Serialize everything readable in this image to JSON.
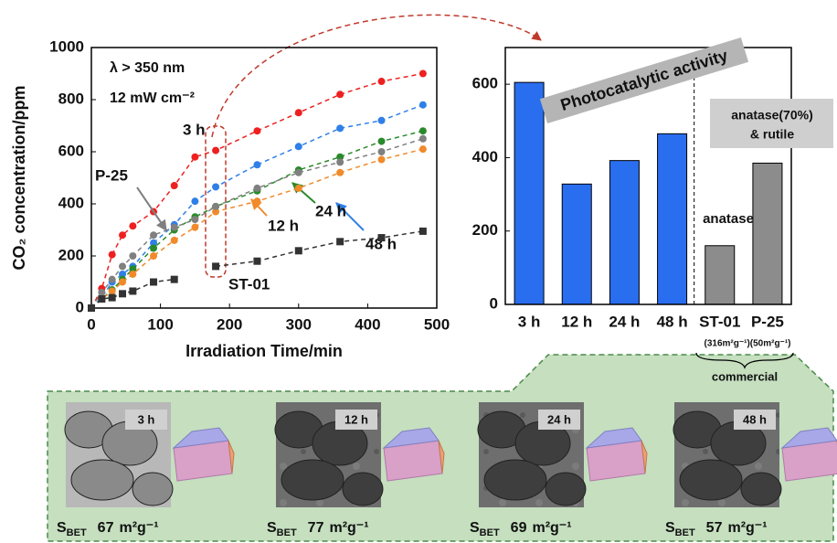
{
  "chart_data": [
    {
      "type": "line",
      "xlabel": "Irradiation Time/min",
      "ylabel": "CO₂ concentration/ppm",
      "annotations": [
        "λ > 350 nm",
        "12 mW cm⁻²"
      ],
      "x": [
        0,
        15,
        30,
        45,
        60,
        90,
        120,
        150,
        180,
        240,
        300,
        360,
        420,
        480
      ],
      "xlim": [
        0,
        500
      ],
      "xticks": [
        0,
        100,
        200,
        300,
        400,
        500
      ],
      "ylim": [
        0,
        1000
      ],
      "yticks": [
        0,
        200,
        400,
        600,
        800,
        1000
      ],
      "series": [
        {
          "name": "3 h",
          "color": "#ee2020",
          "marker": "circle",
          "values": [
            0,
            75,
            205,
            280,
            315,
            370,
            470,
            580,
            605,
            680,
            750,
            820,
            870,
            900
          ]
        },
        {
          "name": "48 h",
          "color": "#2f7fe8",
          "marker": "circle",
          "values": [
            0,
            40,
            100,
            130,
            160,
            250,
            320,
            410,
            465,
            550,
            620,
            690,
            720,
            780
          ]
        },
        {
          "name": "24 h",
          "color": "#2a8a2a",
          "marker": "circle",
          "values": [
            0,
            35,
            70,
            110,
            150,
            230,
            300,
            350,
            390,
            450,
            530,
            580,
            640,
            680
          ]
        },
        {
          "name": "12 h",
          "color": "#f08a2a",
          "marker": "circle",
          "values": [
            0,
            35,
            65,
            100,
            130,
            200,
            260,
            310,
            370,
            410,
            460,
            520,
            570,
            610
          ]
        },
        {
          "name": "P-25",
          "color": "#808080",
          "marker": "circle",
          "values": [
            0,
            60,
            110,
            160,
            200,
            280,
            310,
            340,
            390,
            460,
            520,
            560,
            600,
            650
          ]
        },
        {
          "name": "ST-01",
          "color": "#333333",
          "marker": "square",
          "values": [
            0,
            35,
            40,
            55,
            65,
            100,
            110,
            null,
            160,
            180,
            220,
            255,
            270,
            295
          ]
        }
      ]
    },
    {
      "type": "bar",
      "categories": [
        "3 h",
        "12 h",
        "24 h",
        "48 h",
        "ST-01",
        "P-25"
      ],
      "values": [
        605,
        328,
        392,
        465,
        160,
        385
      ],
      "colors": [
        "#2a6ef0",
        "#2a6ef0",
        "#2a6ef0",
        "#2a6ef0",
        "#8c8c8c",
        "#8c8c8c"
      ],
      "ylim": [
        0,
        700
      ],
      "yticks": [
        0,
        200,
        400,
        600
      ],
      "annotations": [
        "Photocatalytic activity",
        "anatase(70%)",
        "& rutile",
        "anatase",
        "(316m²g⁻¹)(50m²g⁻¹)",
        "commercial"
      ]
    }
  ],
  "images": {
    "symbol": "S",
    "subscript": "BET",
    "unit": "m²g⁻¹",
    "panels": [
      {
        "label": "3 h",
        "value": 67
      },
      {
        "label": "12 h",
        "value": 77
      },
      {
        "label": "24 h",
        "value": 69
      },
      {
        "label": "48 h",
        "value": 57
      }
    ]
  }
}
